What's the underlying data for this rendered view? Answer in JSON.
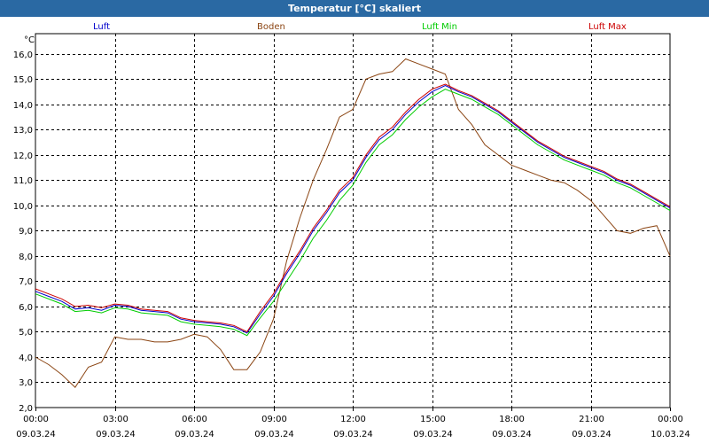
{
  "window": {
    "title": "Temperatur [°C] skaliert"
  },
  "chart_data": {
    "type": "line",
    "title": "Temperatur [°C] skaliert",
    "ylabel": "°C",
    "ylim": [
      2.0,
      16.8
    ],
    "yticks": [
      "2,0",
      "3,0",
      "4,0",
      "5,0",
      "6,0",
      "7,0",
      "8,0",
      "9,0",
      "10,0",
      "11,0",
      "12,0",
      "13,0",
      "14,0",
      "15,0",
      "16,0"
    ],
    "xlim": [
      0,
      24
    ],
    "xticks": [
      {
        "time": "00:00",
        "date": "09.03.24"
      },
      {
        "time": "03:00",
        "date": "09.03.24"
      },
      {
        "time": "06:00",
        "date": "09.03.24"
      },
      {
        "time": "09:00",
        "date": "09.03.24"
      },
      {
        "time": "12:00",
        "date": "09.03.24"
      },
      {
        "time": "15:00",
        "date": "09.03.24"
      },
      {
        "time": "18:00",
        "date": "09.03.24"
      },
      {
        "time": "21:00",
        "date": "09.03.24"
      },
      {
        "time": "00:00",
        "date": "10.03.24"
      }
    ],
    "grid": true,
    "legend_position": "top",
    "series": [
      {
        "name": "Luft",
        "color": "#0000cc",
        "x": [
          0,
          0.5,
          1,
          1.5,
          2,
          2.5,
          3,
          3.5,
          4,
          4.5,
          5,
          5.5,
          6,
          6.5,
          7,
          7.5,
          8,
          8.5,
          9,
          9.5,
          10,
          10.5,
          11,
          11.5,
          12,
          12.5,
          13,
          13.5,
          14,
          14.5,
          15,
          15.5,
          16,
          16.5,
          17,
          17.5,
          18,
          18.5,
          19,
          19.5,
          20,
          20.5,
          21,
          21.5,
          22,
          22.5,
          23,
          23.5,
          24
        ],
        "values": [
          6.6,
          6.4,
          6.2,
          5.9,
          5.95,
          5.85,
          6.05,
          6.0,
          5.85,
          5.8,
          5.75,
          5.5,
          5.4,
          5.35,
          5.3,
          5.2,
          4.95,
          5.7,
          6.4,
          7.3,
          8.1,
          9.0,
          9.7,
          10.5,
          11.0,
          11.9,
          12.6,
          13.0,
          13.6,
          14.1,
          14.5,
          14.75,
          14.5,
          14.3,
          14.0,
          13.7,
          13.3,
          12.9,
          12.5,
          12.2,
          11.9,
          11.7,
          11.5,
          11.3,
          11.0,
          10.8,
          10.5,
          10.2,
          9.9
        ]
      },
      {
        "name": "Boden",
        "color": "#8b4513",
        "x": [
          0,
          0.5,
          1,
          1.5,
          2,
          2.5,
          3,
          3.5,
          4,
          4.5,
          5,
          5.5,
          6,
          6.5,
          7,
          7.5,
          8,
          8.5,
          9,
          9.5,
          10,
          10.5,
          11,
          11.5,
          12,
          12.5,
          13,
          13.5,
          14,
          14.5,
          15,
          15.5,
          16,
          16.5,
          17,
          17.5,
          18,
          18.5,
          19,
          19.5,
          20,
          20.5,
          21,
          21.5,
          22,
          22.5,
          23,
          23.5,
          24
        ],
        "values": [
          4.0,
          3.7,
          3.3,
          2.8,
          3.6,
          3.8,
          4.8,
          4.7,
          4.7,
          4.6,
          4.6,
          4.7,
          4.9,
          4.8,
          4.3,
          3.5,
          3.5,
          4.2,
          5.5,
          7.8,
          9.5,
          11.0,
          12.2,
          13.5,
          13.8,
          15.0,
          15.2,
          15.3,
          15.8,
          15.6,
          15.4,
          15.2,
          13.8,
          13.2,
          12.4,
          12.0,
          11.6,
          11.4,
          11.2,
          11.0,
          10.9,
          10.6,
          10.2,
          9.6,
          9.0,
          8.9,
          9.1,
          9.2,
          8.0
        ]
      },
      {
        "name": "Luft Min",
        "color": "#00cc00",
        "x": [
          0,
          0.5,
          1,
          1.5,
          2,
          2.5,
          3,
          3.5,
          4,
          4.5,
          5,
          5.5,
          6,
          6.5,
          7,
          7.5,
          8,
          8.5,
          9,
          9.5,
          10,
          10.5,
          11,
          11.5,
          12,
          12.5,
          13,
          13.5,
          14,
          14.5,
          15,
          15.5,
          16,
          16.5,
          17,
          17.5,
          18,
          18.5,
          19,
          19.5,
          20,
          20.5,
          21,
          21.5,
          22,
          22.5,
          23,
          23.5,
          24
        ],
        "values": [
          6.5,
          6.3,
          6.1,
          5.8,
          5.85,
          5.75,
          5.95,
          5.9,
          5.75,
          5.7,
          5.65,
          5.4,
          5.3,
          5.25,
          5.2,
          5.1,
          4.85,
          5.55,
          6.2,
          7.0,
          7.8,
          8.7,
          9.4,
          10.2,
          10.8,
          11.7,
          12.4,
          12.8,
          13.4,
          13.9,
          14.3,
          14.6,
          14.4,
          14.2,
          13.9,
          13.6,
          13.2,
          12.8,
          12.4,
          12.1,
          11.8,
          11.6,
          11.4,
          11.2,
          10.9,
          10.7,
          10.4,
          10.1,
          9.8
        ]
      },
      {
        "name": "Luft Max",
        "color": "#cc0000",
        "x": [
          0,
          0.5,
          1,
          1.5,
          2,
          2.5,
          3,
          3.5,
          4,
          4.5,
          5,
          5.5,
          6,
          6.5,
          7,
          7.5,
          8,
          8.5,
          9,
          9.5,
          10,
          10.5,
          11,
          11.5,
          12,
          12.5,
          13,
          13.5,
          14,
          14.5,
          15,
          15.5,
          16,
          16.5,
          17,
          17.5,
          18,
          18.5,
          19,
          19.5,
          20,
          20.5,
          21,
          21.5,
          22,
          22.5,
          23,
          23.5,
          24
        ],
        "values": [
          6.7,
          6.5,
          6.3,
          6.0,
          6.05,
          5.95,
          6.1,
          6.05,
          5.9,
          5.85,
          5.8,
          5.55,
          5.45,
          5.4,
          5.35,
          5.25,
          5.0,
          5.8,
          6.5,
          7.4,
          8.2,
          9.1,
          9.8,
          10.6,
          11.1,
          12.0,
          12.7,
          13.1,
          13.7,
          14.2,
          14.6,
          14.8,
          14.55,
          14.35,
          14.05,
          13.75,
          13.35,
          12.95,
          12.55,
          12.25,
          11.95,
          11.75,
          11.55,
          11.35,
          11.05,
          10.85,
          10.55,
          10.25,
          9.95
        ]
      }
    ]
  }
}
